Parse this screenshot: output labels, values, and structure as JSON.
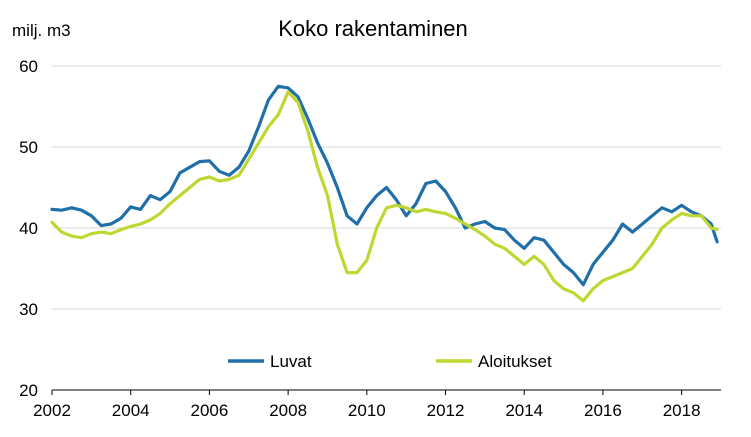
{
  "chart_data": {
    "type": "line",
    "title": "Koko rakentaminen",
    "ylabel": "milj. m3",
    "xlabel": "",
    "xlim": [
      2002,
      2019
    ],
    "ylim": [
      20,
      60
    ],
    "yticks": [
      20,
      30,
      40,
      50,
      60
    ],
    "xticks": [
      2002,
      2004,
      2006,
      2008,
      2010,
      2012,
      2014,
      2016,
      2018
    ],
    "grid": "horizontal",
    "legend_position": "bottom-center",
    "series": [
      {
        "name": "Luvat",
        "color": "#1F6FA8",
        "x": [
          2002.0,
          2002.25,
          2002.5,
          2002.75,
          2003.0,
          2003.25,
          2003.5,
          2003.75,
          2004.0,
          2004.25,
          2004.5,
          2004.75,
          2005.0,
          2005.25,
          2005.5,
          2005.75,
          2006.0,
          2006.25,
          2006.5,
          2006.75,
          2007.0,
          2007.25,
          2007.5,
          2007.75,
          2008.0,
          2008.25,
          2008.5,
          2008.75,
          2009.0,
          2009.25,
          2009.5,
          2009.75,
          2010.0,
          2010.25,
          2010.5,
          2010.75,
          2011.0,
          2011.25,
          2011.5,
          2011.75,
          2012.0,
          2012.25,
          2012.5,
          2012.75,
          2013.0,
          2013.25,
          2013.5,
          2013.75,
          2014.0,
          2014.25,
          2014.5,
          2014.75,
          2015.0,
          2015.25,
          2015.5,
          2015.75,
          2016.0,
          2016.25,
          2016.5,
          2016.75,
          2017.0,
          2017.25,
          2017.5,
          2017.75,
          2018.0,
          2018.25,
          2018.5,
          2018.75,
          2018.9
        ],
        "values": [
          42.3,
          42.2,
          42.5,
          42.2,
          41.5,
          40.3,
          40.5,
          41.2,
          42.6,
          42.3,
          44.0,
          43.5,
          44.5,
          46.8,
          47.5,
          48.2,
          48.3,
          47.0,
          46.5,
          47.5,
          49.5,
          52.5,
          55.8,
          57.5,
          57.3,
          56.2,
          53.5,
          50.5,
          48.0,
          45.0,
          41.5,
          40.5,
          42.5,
          44.0,
          45.0,
          43.5,
          41.5,
          43.0,
          45.5,
          45.8,
          44.5,
          42.5,
          40.0,
          40.5,
          40.8,
          40.0,
          39.8,
          38.5,
          37.5,
          38.8,
          38.5,
          37.0,
          35.5,
          34.5,
          33.0,
          35.5,
          37.0,
          38.5,
          40.5,
          39.5,
          40.5,
          41.5,
          42.5,
          42.0,
          42.8,
          42.0,
          41.5,
          40.5,
          38.3
        ]
      },
      {
        "name": "Aloitukset",
        "color": "#BFD730",
        "x": [
          2002.0,
          2002.25,
          2002.5,
          2002.75,
          2003.0,
          2003.25,
          2003.5,
          2003.75,
          2004.0,
          2004.25,
          2004.5,
          2004.75,
          2005.0,
          2005.25,
          2005.5,
          2005.75,
          2006.0,
          2006.25,
          2006.5,
          2006.75,
          2007.0,
          2007.25,
          2007.5,
          2007.75,
          2008.0,
          2008.25,
          2008.5,
          2008.75,
          2009.0,
          2009.25,
          2009.5,
          2009.75,
          2010.0,
          2010.25,
          2010.5,
          2010.75,
          2011.0,
          2011.25,
          2011.5,
          2011.75,
          2012.0,
          2012.25,
          2012.5,
          2012.75,
          2013.0,
          2013.25,
          2013.5,
          2013.75,
          2014.0,
          2014.25,
          2014.5,
          2014.75,
          2015.0,
          2015.25,
          2015.5,
          2015.75,
          2016.0,
          2016.25,
          2016.5,
          2016.75,
          2017.0,
          2017.25,
          2017.5,
          2017.75,
          2018.0,
          2018.25,
          2018.5,
          2018.75,
          2018.9
        ],
        "values": [
          40.7,
          39.5,
          39.0,
          38.8,
          39.3,
          39.5,
          39.3,
          39.8,
          40.2,
          40.5,
          41.0,
          41.8,
          43.0,
          44.0,
          45.0,
          46.0,
          46.3,
          45.8,
          46.0,
          46.5,
          48.5,
          50.5,
          52.5,
          54.0,
          56.8,
          55.5,
          52.0,
          47.5,
          44.0,
          38.0,
          34.5,
          34.5,
          36.0,
          40.0,
          42.5,
          42.8,
          42.5,
          42.0,
          42.3,
          42.0,
          41.8,
          41.2,
          40.5,
          39.8,
          39.0,
          38.0,
          37.5,
          36.5,
          35.5,
          36.5,
          35.5,
          33.5,
          32.5,
          32.0,
          31.0,
          32.5,
          33.5,
          34.0,
          34.5,
          35.0,
          36.5,
          38.0,
          40.0,
          41.0,
          41.8,
          41.5,
          41.5,
          40.0,
          39.8
        ]
      }
    ]
  }
}
